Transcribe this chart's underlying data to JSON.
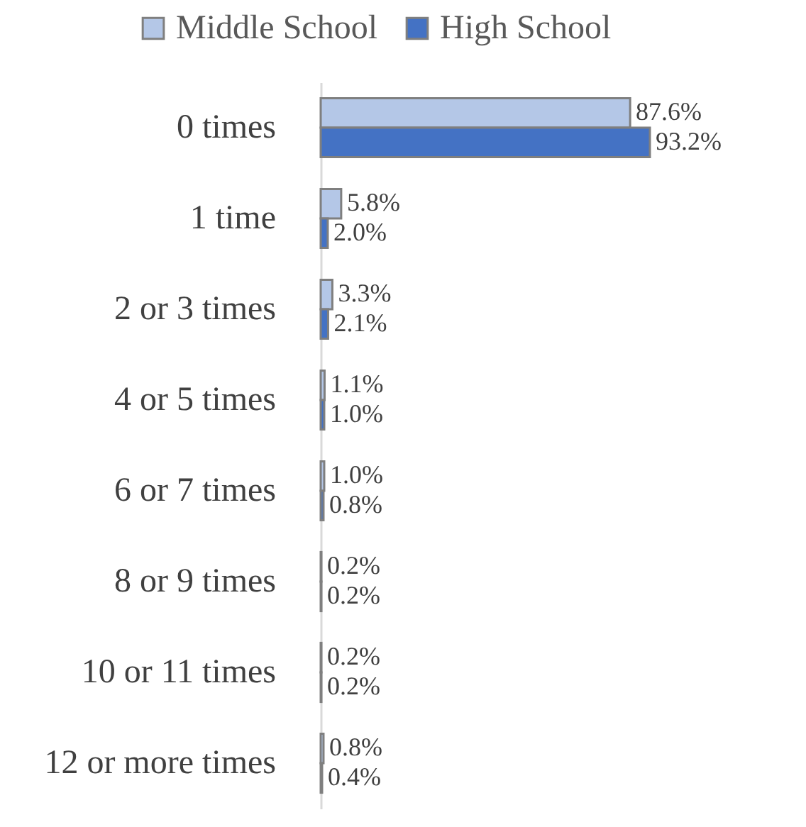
{
  "chart_data": {
    "type": "bar",
    "orientation": "horizontal",
    "legend": "top",
    "categories": [
      "0 times",
      "1 time",
      "2 or 3 times",
      "4 or 5 times",
      "6 or 7 times",
      "8 or 9 times",
      "10 or 11 times",
      "12 or more times"
    ],
    "series": [
      {
        "name": "Middle School",
        "color": "#b4c7e7",
        "values": [
          87.6,
          5.8,
          3.3,
          1.1,
          1.0,
          0.2,
          0.2,
          0.8
        ],
        "value_labels": [
          "87.6%",
          "5.8%",
          "3.3%",
          "1.1%",
          "1.0%",
          "0.2%",
          "0.2%",
          "0.8%"
        ]
      },
      {
        "name": "High School",
        "color": "#4472c4",
        "values": [
          93.2,
          2.0,
          2.1,
          1.0,
          0.8,
          0.2,
          0.2,
          0.4
        ],
        "value_labels": [
          "93.2%",
          "2.0%",
          "2.1%",
          "1.0%",
          "0.8%",
          "0.2%",
          "0.2%",
          "0.4%"
        ]
      }
    ]
  }
}
